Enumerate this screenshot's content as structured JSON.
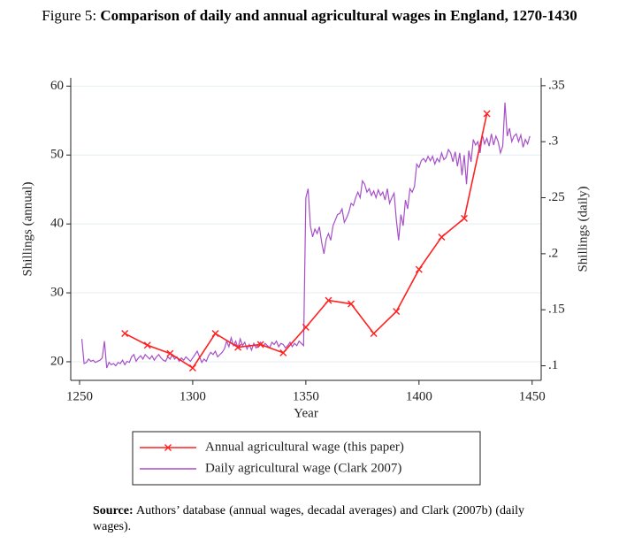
{
  "chart_data": {
    "type": "line",
    "figure_label": "Figure 5:",
    "title": "Comparison of daily and annual agricultural wages in England, 1270-1430",
    "xlabel": "Year",
    "ylabel": "Shillings (annual)",
    "y2label": "Shillings (daily)",
    "xlim": [
      1246.1,
      1454
    ],
    "xticks": [
      1250,
      1300,
      1350,
      1400,
      1450
    ],
    "ylim": [
      17.3,
      61.2
    ],
    "yticks": [
      20,
      30,
      40,
      50,
      60
    ],
    "y2lim": [
      0.087,
      0.357
    ],
    "y2ticks": [
      {
        "value": 0.1,
        "label": ".1"
      },
      {
        "value": 0.15,
        "label": ".15"
      },
      {
        "value": 0.2,
        "label": ".2"
      },
      {
        "value": 0.25,
        "label": ".25"
      },
      {
        "value": 0.3,
        "label": ".3"
      },
      {
        "value": 0.35,
        "label": ".35"
      }
    ],
    "grid": true,
    "legend": "bottom",
    "series": [
      {
        "name": "Annual agricultural wage (this paper)",
        "color": "#ff2020",
        "marker": "x",
        "axis": "y",
        "x": [
          1270,
          1280,
          1290,
          1300,
          1310,
          1320,
          1330,
          1340,
          1350,
          1360,
          1370,
          1380,
          1390,
          1400,
          1410,
          1420,
          1430
        ],
        "values": [
          24.1,
          22.4,
          21.2,
          19.1,
          24.1,
          22.1,
          22.5,
          21.3,
          25.0,
          28.9,
          28.4,
          24.1,
          27.3,
          33.4,
          38.1,
          40.8,
          56.0
        ]
      },
      {
        "name": "Daily agricultural wage (Clark 2007)",
        "color": "#a64fc9",
        "axis": "y2",
        "x": [
          1251,
          1252,
          1253,
          1254,
          1255,
          1256,
          1257,
          1258,
          1259,
          1260,
          1261,
          1262,
          1263,
          1264,
          1265,
          1266,
          1267,
          1268,
          1269,
          1270,
          1271,
          1272,
          1273,
          1274,
          1275,
          1276,
          1277,
          1278,
          1279,
          1280,
          1281,
          1282,
          1283,
          1284,
          1285,
          1286,
          1287,
          1288,
          1289,
          1290,
          1291,
          1292,
          1293,
          1294,
          1295,
          1296,
          1297,
          1298,
          1299,
          1300,
          1301,
          1302,
          1303,
          1304,
          1305,
          1306,
          1307,
          1308,
          1309,
          1310,
          1311,
          1312,
          1313,
          1314,
          1315,
          1316,
          1317,
          1318,
          1319,
          1320,
          1321,
          1322,
          1323,
          1324,
          1325,
          1326,
          1327,
          1328,
          1329,
          1330,
          1331,
          1332,
          1333,
          1334,
          1335,
          1336,
          1337,
          1338,
          1339,
          1340,
          1341,
          1342,
          1343,
          1344,
          1345,
          1346,
          1347,
          1348,
          1349,
          1350,
          1351,
          1352,
          1353,
          1354,
          1355,
          1356,
          1357,
          1358,
          1359,
          1360,
          1361,
          1362,
          1363,
          1364,
          1365,
          1366,
          1367,
          1368,
          1369,
          1370,
          1371,
          1372,
          1373,
          1374,
          1375,
          1376,
          1377,
          1378,
          1379,
          1380,
          1381,
          1382,
          1383,
          1384,
          1385,
          1386,
          1387,
          1388,
          1389,
          1390,
          1391,
          1392,
          1393,
          1394,
          1395,
          1396,
          1397,
          1398,
          1399,
          1400,
          1401,
          1402,
          1403,
          1404,
          1405,
          1406,
          1407,
          1408,
          1409,
          1410,
          1411,
          1412,
          1413,
          1414,
          1415,
          1416,
          1417,
          1418,
          1419,
          1420,
          1421,
          1422,
          1423,
          1424,
          1425,
          1426,
          1427,
          1428,
          1429,
          1430,
          1431,
          1432,
          1433,
          1434,
          1435,
          1436,
          1437,
          1438,
          1439,
          1440,
          1441,
          1442,
          1443,
          1444,
          1445,
          1446,
          1447,
          1448,
          1449
        ],
        "values": [
          0.124,
          0.102,
          0.103,
          0.106,
          0.104,
          0.105,
          0.103,
          0.104,
          0.105,
          0.107,
          0.122,
          0.098,
          0.103,
          0.101,
          0.102,
          0.1,
          0.103,
          0.102,
          0.105,
          0.101,
          0.104,
          0.103,
          0.108,
          0.11,
          0.104,
          0.107,
          0.109,
          0.106,
          0.11,
          0.108,
          0.106,
          0.109,
          0.105,
          0.108,
          0.11,
          0.107,
          0.105,
          0.104,
          0.108,
          0.106,
          0.11,
          0.106,
          0.108,
          0.104,
          0.107,
          0.105,
          0.108,
          0.106,
          0.104,
          0.107,
          0.11,
          0.113,
          0.108,
          0.103,
          0.106,
          0.104,
          0.109,
          0.112,
          0.11,
          0.113,
          0.108,
          0.11,
          0.112,
          0.115,
          0.122,
          0.117,
          0.125,
          0.118,
          0.122,
          0.116,
          0.124,
          0.118,
          0.121,
          0.115,
          0.119,
          0.114,
          0.12,
          0.116,
          0.119,
          0.121,
          0.117,
          0.12,
          0.118,
          0.116,
          0.121,
          0.119,
          0.122,
          0.117,
          0.12,
          0.119,
          0.116,
          0.118,
          0.121,
          0.117,
          0.12,
          0.118,
          0.122,
          0.12,
          0.118,
          0.25,
          0.258,
          0.225,
          0.215,
          0.222,
          0.218,
          0.224,
          0.21,
          0.2,
          0.213,
          0.218,
          0.212,
          0.225,
          0.23,
          0.235,
          0.236,
          0.24,
          0.228,
          0.232,
          0.237,
          0.245,
          0.243,
          0.25,
          0.255,
          0.25,
          0.265,
          0.262,
          0.255,
          0.258,
          0.252,
          0.256,
          0.25,
          0.257,
          0.252,
          0.255,
          0.248,
          0.258,
          0.245,
          0.25,
          0.254,
          0.23,
          0.212,
          0.235,
          0.225,
          0.248,
          0.24,
          0.258,
          0.255,
          0.26,
          0.28,
          0.277,
          0.283,
          0.285,
          0.282,
          0.287,
          0.283,
          0.287,
          0.28,
          0.285,
          0.282,
          0.29,
          0.284,
          0.286,
          0.293,
          0.29,
          0.282,
          0.291,
          0.278,
          0.29,
          0.27,
          0.288,
          0.262,
          0.292,
          0.282,
          0.302,
          0.297,
          0.3,
          0.29,
          0.306,
          0.298,
          0.303,
          0.296,
          0.307,
          0.297,
          0.305,
          0.3,
          0.29,
          0.296,
          0.335,
          0.305,
          0.312,
          0.3,
          0.305,
          0.307,
          0.3,
          0.306,
          0.295,
          0.302,
          0.298,
          0.305
        ]
      }
    ],
    "note": {
      "label": "Source:",
      "text": "Authors’ database (annual wages, decadal averages) and Clark (2007b) (daily wages)."
    }
  }
}
